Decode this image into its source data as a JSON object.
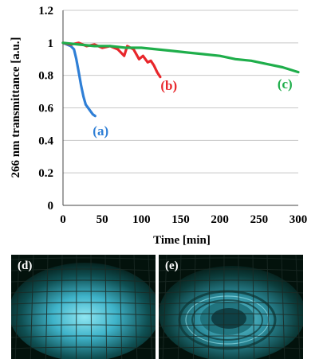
{
  "chart_data": {
    "type": "line",
    "xlabel": "Time [min]",
    "ylabel": "266 nm transmittance [a.u.]",
    "xlim": [
      0,
      300
    ],
    "ylim": [
      0,
      1.2
    ],
    "xticks": [
      "0",
      "50",
      "100",
      "150",
      "200",
      "250",
      "300"
    ],
    "yticks": [
      "0",
      "0.2",
      "0.4",
      "0.6",
      "0.8",
      "1",
      "1.2"
    ],
    "grid": "horizontal",
    "series": [
      {
        "label": "(a)",
        "color": "#2f7fd6",
        "points": [
          [
            0,
            1.0
          ],
          [
            5,
            0.99
          ],
          [
            10,
            0.98
          ],
          [
            14,
            0.96
          ],
          [
            17,
            0.9
          ],
          [
            20,
            0.82
          ],
          [
            23,
            0.74
          ],
          [
            26,
            0.67
          ],
          [
            29,
            0.62
          ],
          [
            32,
            0.6
          ],
          [
            35,
            0.58
          ],
          [
            38,
            0.56
          ],
          [
            41,
            0.55
          ]
        ]
      },
      {
        "label": "(b)",
        "color": "#e8262b",
        "points": [
          [
            0,
            1.0
          ],
          [
            10,
            0.99
          ],
          [
            20,
            1.0
          ],
          [
            30,
            0.98
          ],
          [
            40,
            0.99
          ],
          [
            50,
            0.97
          ],
          [
            60,
            0.98
          ],
          [
            70,
            0.96
          ],
          [
            78,
            0.92
          ],
          [
            82,
            0.98
          ],
          [
            90,
            0.96
          ],
          [
            97,
            0.9
          ],
          [
            102,
            0.92
          ],
          [
            108,
            0.88
          ],
          [
            112,
            0.89
          ],
          [
            116,
            0.86
          ],
          [
            120,
            0.82
          ],
          [
            124,
            0.79
          ]
        ]
      },
      {
        "label": "(c)",
        "color": "#1fae4b",
        "points": [
          [
            0,
            1.0
          ],
          [
            20,
            0.99
          ],
          [
            40,
            0.98
          ],
          [
            60,
            0.98
          ],
          [
            80,
            0.97
          ],
          [
            100,
            0.97
          ],
          [
            120,
            0.96
          ],
          [
            140,
            0.95
          ],
          [
            160,
            0.94
          ],
          [
            180,
            0.93
          ],
          [
            200,
            0.92
          ],
          [
            220,
            0.9
          ],
          [
            240,
            0.89
          ],
          [
            260,
            0.87
          ],
          [
            280,
            0.85
          ],
          [
            300,
            0.82
          ]
        ]
      }
    ],
    "annotations": [
      {
        "text": "(a)",
        "x": 48,
        "y": 0.43,
        "color": "#2f7fd6"
      },
      {
        "text": "(b)",
        "x": 135,
        "y": 0.71,
        "color": "#e8262b"
      },
      {
        "text": "(c)",
        "x": 283,
        "y": 0.72,
        "color": "#1fae4b"
      }
    ]
  },
  "panels": [
    {
      "label": "(d)"
    },
    {
      "label": "(e)"
    }
  ]
}
